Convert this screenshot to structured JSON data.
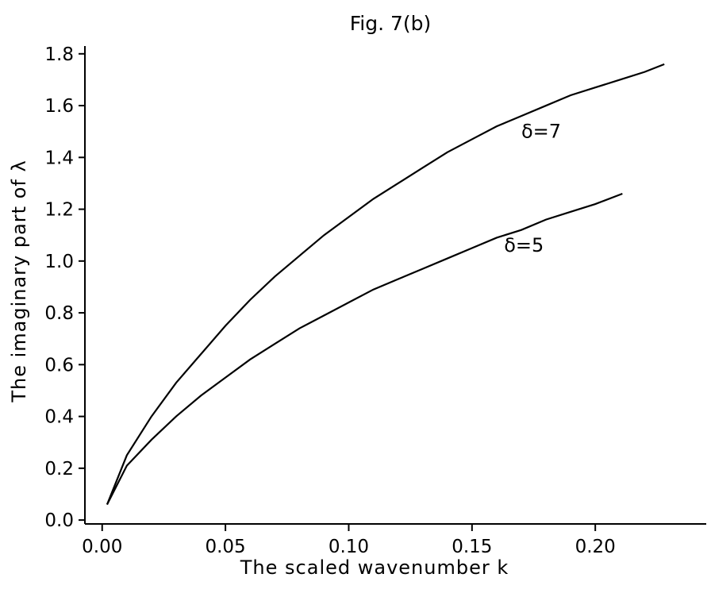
{
  "chart_data": {
    "type": "line",
    "title": "Fig. 7(b)",
    "xlabel": "The scaled wavenumber k",
    "ylabel": "The imaginary part of λ",
    "xlim": [
      -0.007,
      0.245
    ],
    "ylim": [
      -0.015,
      1.83
    ],
    "xticks": [
      0.0,
      0.05,
      0.1,
      0.15,
      0.2
    ],
    "xtick_labels": [
      "0.00",
      "0.05",
      "0.10",
      "0.15",
      "0.20"
    ],
    "yticks": [
      0.0,
      0.2,
      0.4,
      0.6,
      0.8,
      1.0,
      1.2,
      1.4,
      1.6,
      1.8
    ],
    "ytick_labels": [
      "0.0",
      "0.2",
      "0.4",
      "0.6",
      "0.8",
      "1.0",
      "1.2",
      "1.4",
      "1.6",
      "1.8"
    ],
    "grid": false,
    "series": [
      {
        "name": "δ=7",
        "label_at": [
          0.17,
          1.5
        ],
        "x": [
          0.002,
          0.01,
          0.02,
          0.03,
          0.04,
          0.05,
          0.06,
          0.07,
          0.08,
          0.09,
          0.1,
          0.11,
          0.12,
          0.13,
          0.14,
          0.15,
          0.16,
          0.17,
          0.18,
          0.19,
          0.2,
          0.21,
          0.22,
          0.228
        ],
        "y": [
          0.06,
          0.25,
          0.4,
          0.53,
          0.64,
          0.75,
          0.85,
          0.94,
          1.02,
          1.1,
          1.17,
          1.24,
          1.3,
          1.36,
          1.42,
          1.47,
          1.52,
          1.56,
          1.6,
          1.64,
          1.67,
          1.7,
          1.73,
          1.76
        ]
      },
      {
        "name": "δ=5",
        "label_at": [
          0.163,
          1.06
        ],
        "x": [
          0.002,
          0.01,
          0.02,
          0.03,
          0.04,
          0.05,
          0.06,
          0.07,
          0.08,
          0.09,
          0.1,
          0.11,
          0.12,
          0.13,
          0.14,
          0.15,
          0.16,
          0.17,
          0.18,
          0.19,
          0.2,
          0.211
        ],
        "y": [
          0.06,
          0.21,
          0.31,
          0.4,
          0.48,
          0.55,
          0.62,
          0.68,
          0.74,
          0.79,
          0.84,
          0.89,
          0.93,
          0.97,
          1.01,
          1.05,
          1.09,
          1.12,
          1.16,
          1.19,
          1.22,
          1.26
        ]
      }
    ]
  }
}
